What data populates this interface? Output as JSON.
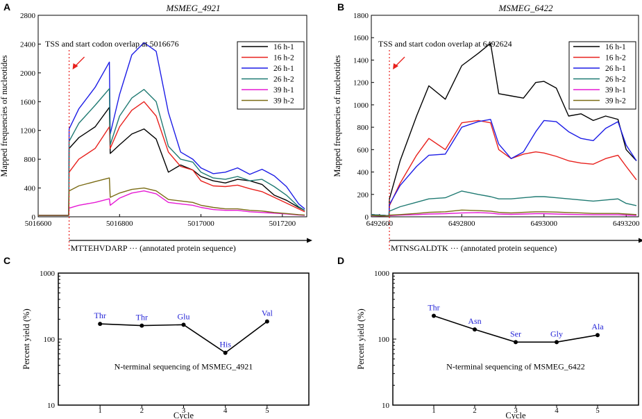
{
  "chart_data": [
    {
      "panel": "A",
      "type": "line",
      "title": "MSMEG_4921",
      "annotation": "TSS and start codon overlap at 5016676",
      "ylabel": "Mapped frequencies of nucleotides",
      "xlabel": "",
      "xlim": [
        5016600,
        5017260
      ],
      "ylim": [
        0,
        2800
      ],
      "xticks": [
        5016600,
        5016800,
        5017000,
        5017200
      ],
      "yticks": [
        0,
        400,
        800,
        1200,
        1600,
        2000,
        2400,
        2800
      ],
      "tss": 5016676,
      "sequence_label": "MTTEHVDARP",
      "sequence_suffix": "···   (annotated protein sequence)",
      "legend_position": "top-right",
      "series": [
        {
          "name": "16 h-1",
          "color": "#000000",
          "x": [
            5016600,
            5016675,
            5016676,
            5016700,
            5016740,
            5016775,
            5016777,
            5016800,
            5016830,
            5016860,
            5016890,
            5016920,
            5016950,
            5016980,
            5017000,
            5017030,
            5017060,
            5017090,
            5017120,
            5017150,
            5017180,
            5017210,
            5017240,
            5017255
          ],
          "y": [
            20,
            20,
            950,
            1100,
            1250,
            1520,
            880,
            1000,
            1150,
            1220,
            1080,
            620,
            720,
            650,
            560,
            500,
            470,
            520,
            500,
            450,
            300,
            230,
            130,
            90
          ]
        },
        {
          "name": "16 h-2",
          "color": "#e8201c",
          "x": [
            5016600,
            5016675,
            5016676,
            5016700,
            5016740,
            5016775,
            5016777,
            5016800,
            5016830,
            5016860,
            5016890,
            5016920,
            5016950,
            5016980,
            5017000,
            5017030,
            5017060,
            5017090,
            5017120,
            5017150,
            5017180,
            5017210,
            5017240,
            5017255
          ],
          "y": [
            20,
            20,
            620,
            800,
            950,
            1250,
            950,
            1250,
            1480,
            1600,
            1400,
            900,
            700,
            650,
            500,
            430,
            420,
            440,
            390,
            350,
            270,
            190,
            110,
            70
          ]
        },
        {
          "name": "26 h-1",
          "color": "#1c1ce6",
          "x": [
            5016600,
            5016675,
            5016676,
            5016700,
            5016740,
            5016775,
            5016777,
            5016800,
            5016830,
            5016860,
            5016890,
            5016920,
            5016950,
            5016980,
            5017000,
            5017030,
            5017060,
            5017090,
            5017120,
            5017150,
            5017180,
            5017210,
            5017240,
            5017255
          ],
          "y": [
            20,
            20,
            1220,
            1500,
            1800,
            2150,
            1150,
            1700,
            2250,
            2420,
            2300,
            1450,
            900,
            800,
            680,
            600,
            620,
            680,
            590,
            660,
            570,
            420,
            180,
            110
          ]
        },
        {
          "name": "26 h-2",
          "color": "#1f7a72",
          "x": [
            5016600,
            5016675,
            5016676,
            5016700,
            5016740,
            5016775,
            5016777,
            5016800,
            5016830,
            5016860,
            5016890,
            5016920,
            5016950,
            5016980,
            5017000,
            5017030,
            5017060,
            5017090,
            5017120,
            5017150,
            5017180,
            5017210,
            5017240,
            5017255
          ],
          "y": [
            20,
            20,
            1050,
            1300,
            1550,
            1780,
            1000,
            1400,
            1650,
            1770,
            1600,
            980,
            800,
            760,
            620,
            540,
            520,
            560,
            500,
            520,
            420,
            300,
            140,
            90
          ]
        },
        {
          "name": "39 h-1",
          "color": "#e619d4",
          "x": [
            5016600,
            5016675,
            5016676,
            5016700,
            5016740,
            5016775,
            5016777,
            5016800,
            5016830,
            5016860,
            5016890,
            5016920,
            5016950,
            5016980,
            5017000,
            5017030,
            5017060,
            5017090,
            5017120,
            5017150,
            5017180,
            5017210,
            5017240,
            5017255
          ],
          "y": [
            20,
            20,
            120,
            160,
            200,
            250,
            160,
            260,
            330,
            360,
            320,
            200,
            180,
            160,
            130,
            100,
            90,
            90,
            70,
            60,
            50,
            40,
            25,
            20
          ]
        },
        {
          "name": "39 h-2",
          "color": "#7a6b14",
          "x": [
            5016600,
            5016675,
            5016676,
            5016700,
            5016740,
            5016775,
            5016777,
            5016800,
            5016830,
            5016860,
            5016890,
            5016920,
            5016950,
            5016980,
            5017000,
            5017030,
            5017060,
            5017090,
            5017120,
            5017150,
            5017180,
            5017210,
            5017240,
            5017255
          ],
          "y": [
            20,
            20,
            360,
            430,
            490,
            540,
            270,
            330,
            380,
            400,
            360,
            240,
            220,
            200,
            160,
            130,
            110,
            110,
            90,
            80,
            60,
            45,
            30,
            25
          ]
        }
      ]
    },
    {
      "panel": "B",
      "type": "line",
      "title": "MSMEG_6422",
      "annotation": "TSS and start codon overlap at 6492624",
      "ylabel": "Mapped frequencies of nucleotides",
      "xlabel": "",
      "xlim": [
        6492580,
        6493230
      ],
      "ylim": [
        0,
        1800
      ],
      "xticks": [
        6492600,
        6492800,
        6493000,
        6493200
      ],
      "yticks": [
        0,
        200,
        400,
        600,
        800,
        1000,
        1200,
        1400,
        1600,
        1800
      ],
      "tss": 6492624,
      "sequence_label": "MTNSGALDTK",
      "sequence_suffix": "···   (annotated protein sequence)",
      "legend_position": "top-right",
      "series": [
        {
          "name": "16 h-1",
          "color": "#000000",
          "x": [
            6492580,
            6492623,
            6492624,
            6492650,
            6492690,
            6492720,
            6492760,
            6492800,
            6492840,
            6492870,
            6492890,
            6492920,
            6492950,
            6492980,
            6493000,
            6493030,
            6493060,
            6493090,
            6493120,
            6493150,
            6493180,
            6493200,
            6493225
          ],
          "y": [
            20,
            10,
            160,
            500,
            900,
            1170,
            1050,
            1350,
            1460,
            1550,
            1100,
            1080,
            1060,
            1200,
            1210,
            1150,
            900,
            920,
            860,
            900,
            870,
            600,
            500
          ]
        },
        {
          "name": "16 h-2",
          "color": "#e8201c",
          "x": [
            6492580,
            6492623,
            6492624,
            6492650,
            6492690,
            6492720,
            6492760,
            6492800,
            6492840,
            6492870,
            6492890,
            6492920,
            6492950,
            6492980,
            6493000,
            6493030,
            6493060,
            6493090,
            6493120,
            6493150,
            6493180,
            6493200,
            6493225
          ],
          "y": [
            20,
            10,
            100,
            300,
            550,
            700,
            600,
            840,
            860,
            840,
            600,
            520,
            560,
            580,
            570,
            540,
            500,
            480,
            470,
            520,
            550,
            450,
            330
          ]
        },
        {
          "name": "26 h-1",
          "color": "#1c1ce6",
          "x": [
            6492580,
            6492623,
            6492624,
            6492650,
            6492690,
            6492720,
            6492760,
            6492800,
            6492840,
            6492870,
            6492890,
            6492920,
            6492950,
            6492980,
            6493000,
            6493030,
            6493060,
            6493090,
            6493120,
            6493150,
            6493180,
            6493200,
            6493225
          ],
          "y": [
            20,
            10,
            110,
            280,
            450,
            550,
            560,
            800,
            850,
            870,
            650,
            520,
            580,
            760,
            860,
            850,
            760,
            700,
            680,
            790,
            850,
            640,
            500
          ]
        },
        {
          "name": "26 h-2",
          "color": "#1f7a72",
          "x": [
            6492580,
            6492623,
            6492624,
            6492650,
            6492690,
            6492720,
            6492760,
            6492800,
            6492840,
            6492870,
            6492890,
            6492920,
            6492950,
            6492980,
            6493000,
            6493030,
            6493060,
            6493090,
            6493120,
            6493150,
            6493180,
            6493200,
            6493225
          ],
          "y": [
            20,
            10,
            50,
            90,
            130,
            160,
            170,
            230,
            200,
            180,
            160,
            160,
            170,
            180,
            180,
            170,
            160,
            150,
            140,
            150,
            160,
            120,
            100
          ]
        },
        {
          "name": "39 h-1",
          "color": "#e619d4",
          "x": [
            6492580,
            6492623,
            6492624,
            6492650,
            6492690,
            6492720,
            6492760,
            6492800,
            6492840,
            6492870,
            6492890,
            6492920,
            6492950,
            6492980,
            6493000,
            6493030,
            6493060,
            6493090,
            6493120,
            6493150,
            6493180,
            6493200,
            6493225
          ],
          "y": [
            10,
            5,
            10,
            15,
            20,
            25,
            28,
            35,
            38,
            33,
            25,
            22,
            25,
            28,
            28,
            25,
            22,
            20,
            18,
            18,
            18,
            15,
            12
          ]
        },
        {
          "name": "39 h-2",
          "color": "#7a6b14",
          "x": [
            6492580,
            6492623,
            6492624,
            6492650,
            6492690,
            6492720,
            6492760,
            6492800,
            6492840,
            6492870,
            6492890,
            6492920,
            6492950,
            6492980,
            6493000,
            6493030,
            6493060,
            6493090,
            6493120,
            6493150,
            6493180,
            6493200,
            6493225
          ],
          "y": [
            12,
            6,
            15,
            20,
            30,
            40,
            45,
            60,
            55,
            50,
            40,
            35,
            40,
            45,
            45,
            42,
            38,
            35,
            30,
            30,
            30,
            25,
            20
          ]
        }
      ]
    },
    {
      "panel": "C",
      "type": "line",
      "title": "N-terminal sequencing of MSMEG_4921",
      "xlabel": "Cycle",
      "ylabel": "Percent yield (%)",
      "yscale": "log",
      "xlim": [
        0,
        6
      ],
      "ylim": [
        10,
        1000
      ],
      "xticks": [
        1,
        2,
        3,
        4,
        5
      ],
      "yticks": [
        10,
        100,
        1000
      ],
      "x": [
        1,
        2,
        3,
        4,
        5
      ],
      "y": [
        170,
        160,
        165,
        62,
        185
      ],
      "labels": [
        "Thr",
        "Thr",
        "Glu",
        "His",
        "Val"
      ]
    },
    {
      "panel": "D",
      "type": "line",
      "title": "N-terminal sequencing of MSMEG_6422",
      "xlabel": "Cycle",
      "ylabel": "Percent yield (%)",
      "yscale": "log",
      "xlim": [
        0,
        6
      ],
      "ylim": [
        10,
        1000
      ],
      "xticks": [
        1,
        2,
        3,
        4,
        5
      ],
      "yticks": [
        10,
        100,
        1000
      ],
      "x": [
        1,
        2,
        3,
        4,
        5
      ],
      "y": [
        225,
        140,
        90,
        90,
        115
      ],
      "labels": [
        "Thr",
        "Asn",
        "Ser",
        "Gly",
        "Ala"
      ]
    }
  ],
  "colors": {
    "axis": "#000000",
    "tss_line": "#e8201c",
    "aa_label": "#1f1fd6"
  }
}
